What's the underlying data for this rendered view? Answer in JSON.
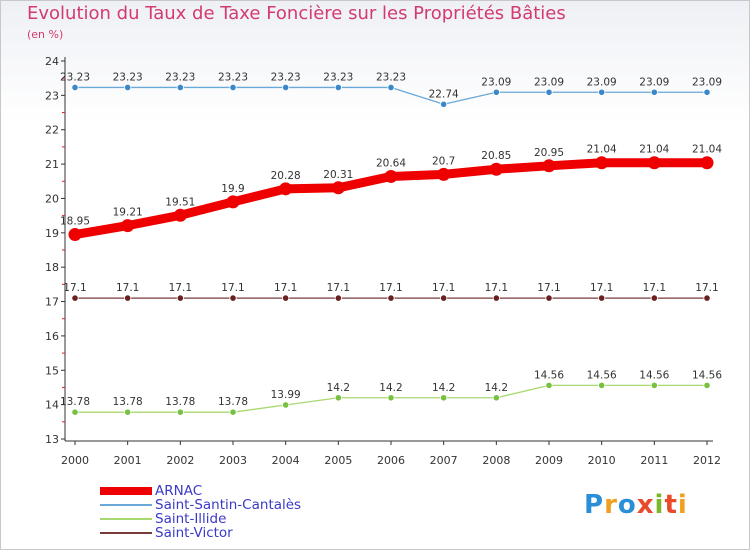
{
  "title": "Evolution du Taux de Taxe Foncière sur les Propriétés Bâties",
  "unit_label": "(en %)",
  "logo": {
    "text": "Proxiti",
    "letter_colors": [
      "#2a8fd8",
      "#f0a020",
      "#2a8fd8",
      "#e84a2a",
      "#7ab82a",
      "#e84a2a",
      "#f0a020"
    ]
  },
  "chart_data": {
    "type": "line",
    "title": "Evolution du Taux de Taxe Foncière sur les Propriétés Bâties",
    "ylabel": "(en %)",
    "xlabel": "",
    "ylim": [
      13,
      24
    ],
    "yticks": [
      13,
      14,
      15,
      16,
      17,
      18,
      19,
      20,
      21,
      22,
      23,
      24
    ],
    "x": [
      2000,
      2001,
      2002,
      2003,
      2004,
      2005,
      2006,
      2007,
      2008,
      2009,
      2010,
      2011,
      2012
    ],
    "grid": false,
    "legend_position": "bottom-left",
    "series": [
      {
        "name": "ARNAC",
        "color": "#ee0000",
        "marker_color": "#ee0000",
        "emphasis": true,
        "values": [
          18.95,
          19.21,
          19.51,
          19.9,
          20.28,
          20.31,
          20.64,
          20.7,
          20.85,
          20.95,
          21.04,
          21.04,
          21.04
        ],
        "labels": [
          "18.95",
          "19.21",
          "19.51",
          "19.9",
          "20.28",
          "20.31",
          "20.64",
          "20.7",
          "20.85",
          "20.95",
          "21.04",
          "21.04",
          "21.04"
        ]
      },
      {
        "name": "Saint-Santin-Cantalès",
        "color": "#6aa8d8",
        "marker_color": "#3a88c8",
        "values": [
          23.23,
          23.23,
          23.23,
          23.23,
          23.23,
          23.23,
          23.23,
          22.74,
          23.09,
          23.09,
          23.09,
          23.09,
          23.09
        ],
        "labels": [
          "23.23",
          "23.23",
          "23.23",
          "23.23",
          "23.23",
          "23.23",
          "23.23",
          "22.74",
          "23.09",
          "23.09",
          "23.09",
          "23.09",
          "23.09"
        ]
      },
      {
        "name": "Saint-Illide",
        "color": "#a8d870",
        "marker_color": "#78c040",
        "values": [
          13.78,
          13.78,
          13.78,
          13.78,
          13.99,
          14.2,
          14.2,
          14.2,
          14.2,
          14.56,
          14.56,
          14.56,
          14.56
        ],
        "labels": [
          "13.78",
          "13.78",
          "13.78",
          "13.78",
          "13.99",
          "14.2",
          "14.2",
          "14.2",
          "14.2",
          "14.56",
          "14.56",
          "14.56",
          "14.56"
        ]
      },
      {
        "name": "Saint-Victor",
        "color": "#7a3a3a",
        "marker_color": "#6a2020",
        "values": [
          17.1,
          17.1,
          17.1,
          17.1,
          17.1,
          17.1,
          17.1,
          17.1,
          17.1,
          17.1,
          17.1,
          17.1,
          17.1
        ],
        "labels": [
          "17.1",
          "17.1",
          "17.1",
          "17.1",
          "17.1",
          "17.1",
          "17.1",
          "17.1",
          "17.1",
          "17.1",
          "17.1",
          "17.1",
          "17.1"
        ]
      }
    ]
  }
}
